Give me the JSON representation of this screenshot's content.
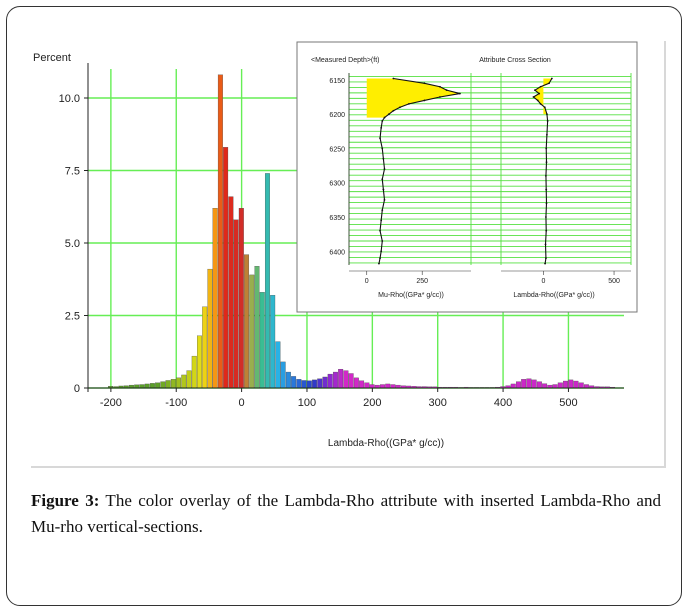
{
  "chart_data": [
    {
      "type": "bar",
      "ylabel": "Percent",
      "xlabel": "Lambda-Rho((GPa* g/cc))",
      "xlim": [
        -235,
        585
      ],
      "ylim": [
        0,
        11
      ],
      "x_ticks": [
        "-200",
        "-100",
        "0",
        "100",
        "200",
        "300",
        "400",
        "500"
      ],
      "y_ticks": [
        "0",
        "2.5",
        "5.0",
        "7.5",
        "10.0"
      ],
      "grid": true,
      "bin_width": 8,
      "colorscale": "rainbow (yellow-red-green-cyan-blue-magenta) by Lambda-Rho value",
      "x": [
        -200,
        -192,
        -184,
        -176,
        -168,
        -160,
        -152,
        -144,
        -136,
        -128,
        -120,
        -112,
        -104,
        -96,
        -88,
        -80,
        -72,
        -64,
        -56,
        -48,
        -40,
        -32,
        -24,
        -16,
        -8,
        0,
        8,
        16,
        24,
        32,
        40,
        48,
        56,
        64,
        72,
        80,
        88,
        96,
        104,
        112,
        120,
        128,
        136,
        144,
        152,
        160,
        168,
        176,
        184,
        192,
        200,
        208,
        216,
        224,
        232,
        240,
        248,
        256,
        264,
        272,
        280,
        288,
        296,
        304,
        312,
        320,
        328,
        336,
        344,
        352,
        360,
        368,
        376,
        384,
        392,
        400,
        408,
        416,
        424,
        432,
        440,
        448,
        456,
        464,
        472,
        480,
        488,
        496,
        504,
        512,
        520,
        528,
        536,
        544,
        552,
        560,
        568
      ],
      "values": [
        0.06,
        0.05,
        0.07,
        0.08,
        0.1,
        0.11,
        0.12,
        0.14,
        0.16,
        0.18,
        0.22,
        0.26,
        0.3,
        0.35,
        0.45,
        0.6,
        1.1,
        1.8,
        2.8,
        4.1,
        6.2,
        10.8,
        8.3,
        6.6,
        5.8,
        6.2,
        4.6,
        3.9,
        4.2,
        3.3,
        7.4,
        3.2,
        1.6,
        0.9,
        0.55,
        0.4,
        0.3,
        0.26,
        0.25,
        0.28,
        0.32,
        0.38,
        0.48,
        0.55,
        0.65,
        0.6,
        0.5,
        0.35,
        0.25,
        0.18,
        0.12,
        0.1,
        0.12,
        0.14,
        0.12,
        0.1,
        0.08,
        0.07,
        0.06,
        0.05,
        0.05,
        0.04,
        0.04,
        0.03,
        0.03,
        0.03,
        0.03,
        0.02,
        0.03,
        0.02,
        0.02,
        0.02,
        0.02,
        0.02,
        0.03,
        0.05,
        0.08,
        0.14,
        0.22,
        0.3,
        0.32,
        0.28,
        0.22,
        0.15,
        0.1,
        0.12,
        0.18,
        0.24,
        0.28,
        0.24,
        0.18,
        0.12,
        0.08,
        0.05,
        0.04,
        0.04,
        0.03
      ]
    },
    {
      "type": "line",
      "title": "Attribute Cross Section",
      "ylabel": "<Measured Depth>(ft)",
      "ylim": [
        6140,
        6420
      ],
      "y_ticks": [
        "6150",
        "6200",
        "6250",
        "6300",
        "6350",
        "6400"
      ],
      "tracks": [
        {
          "xlabel": "Mu-Rho((GPa* g/cc))",
          "x_ticks": [
            "0",
            "250"
          ],
          "xlim": [
            -80,
            470
          ],
          "depth": [
            6148,
            6155,
            6160,
            6165,
            6170,
            6175,
            6180,
            6185,
            6190,
            6195,
            6200,
            6205,
            6210,
            6220,
            6235,
            6250,
            6265,
            6280,
            6295,
            6310,
            6325,
            6340,
            6355,
            6370,
            6385,
            6400,
            6410,
            6418
          ],
          "values": [
            120,
            260,
            330,
            360,
            420,
            330,
            260,
            190,
            150,
            120,
            100,
            80,
            70,
            65,
            60,
            70,
            75,
            80,
            70,
            75,
            80,
            70,
            65,
            60,
            70,
            65,
            60,
            55
          ]
        },
        {
          "xlabel": "Lambda-Rho((GPa* g/cc))",
          "x_ticks": [
            "0",
            "500"
          ],
          "xlim": [
            -300,
            620
          ],
          "depth": [
            6148,
            6155,
            6160,
            6165,
            6170,
            6175,
            6180,
            6185,
            6190,
            6200,
            6210,
            6230,
            6250,
            6270,
            6290,
            6310,
            6330,
            6350,
            6370,
            6390,
            6410,
            6418
          ],
          "values": [
            60,
            40,
            -20,
            -60,
            -30,
            -70,
            -40,
            -20,
            10,
            25,
            30,
            25,
            20,
            22,
            18,
            20,
            22,
            18,
            20,
            15,
            18,
            12
          ]
        }
      ]
    }
  ],
  "caption": {
    "label": "Figure 3:",
    "text": " The color overlay of the Lambda-Rho attribute with inserted Lambda-Rho and Mu-rho vertical-sections."
  }
}
